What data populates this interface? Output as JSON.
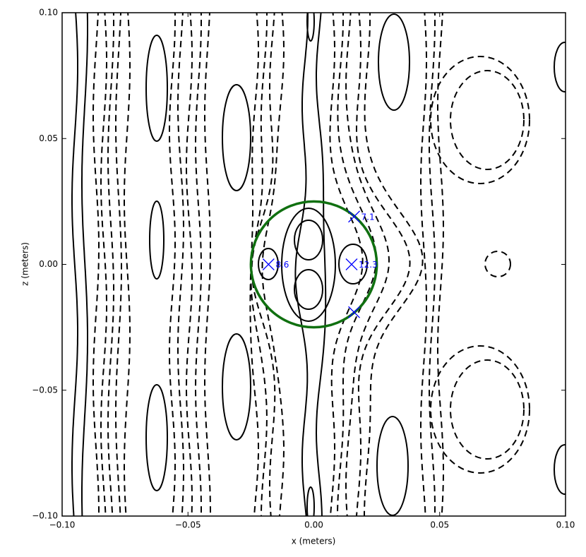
{
  "chart_data": {
    "type": "scatter",
    "xlabel": "x (meters)",
    "ylabel": "z (meters)",
    "xlim": [
      -0.1,
      0.1
    ],
    "ylim": [
      -0.1,
      0.1
    ],
    "xticks": [
      {
        "value": -0.1,
        "label": "−0.10"
      },
      {
        "value": -0.05,
        "label": "−0.05"
      },
      {
        "value": 0,
        "label": "0.00"
      },
      {
        "value": 0.05,
        "label": "0.05"
      },
      {
        "value": 0.1,
        "label": "0.10"
      }
    ],
    "yticks": [
      {
        "value": -0.1,
        "label": "−0.10"
      },
      {
        "value": -0.05,
        "label": "−0.05"
      },
      {
        "value": 0,
        "label": "0.00"
      },
      {
        "value": 0.05,
        "label": "0.05"
      },
      {
        "value": 0.1,
        "label": "0.10"
      }
    ],
    "x": [
      0.016,
      -0.018,
      0.015,
      0.016
    ],
    "y": [
      0.019,
      0.0,
      0.0,
      -0.019
    ],
    "labels": [
      "7.1",
      "8.6",
      "12.3",
      null
    ],
    "marker_color": "#0000ff",
    "circle": {
      "center": [
        0,
        0
      ],
      "radius": 0.025,
      "color": "#107010"
    }
  }
}
